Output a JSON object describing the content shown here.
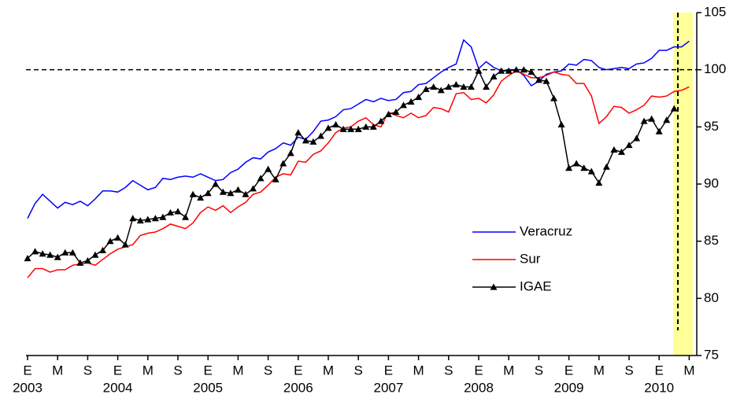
{
  "chart_data": {
    "type": "line",
    "categories": [
      "E",
      null,
      null,
      null,
      "M",
      null,
      null,
      null,
      "S",
      null,
      null,
      null,
      "E",
      null,
      null,
      null,
      "M",
      null,
      null,
      null,
      "S",
      null,
      null,
      null,
      "E",
      null,
      null,
      null,
      "M",
      null,
      null,
      null,
      "S",
      null,
      null,
      null,
      "E",
      null,
      null,
      null,
      "M",
      null,
      null,
      null,
      "S",
      null,
      null,
      null,
      "E",
      null,
      null,
      null,
      "M",
      null,
      null,
      null,
      "S",
      null,
      null,
      null,
      "E",
      null,
      null,
      null,
      "M",
      null,
      null,
      null,
      "S",
      null,
      null,
      null,
      "E",
      null,
      null,
      null,
      "M",
      null,
      null,
      null,
      "S",
      null,
      null,
      null,
      "E",
      null,
      null,
      null,
      "M"
    ],
    "years": [
      "2003",
      "2004",
      "2005",
      "2006",
      "2007",
      "2008",
      "2009",
      "2010"
    ],
    "series": [
      {
        "name": "Veracruz",
        "color": "#0000ff",
        "values": [
          87.0,
          88.3,
          89.1,
          88.5,
          87.9,
          88.4,
          88.2,
          88.5,
          88.1,
          88.7,
          89.4,
          89.4,
          89.3,
          89.7,
          90.3,
          89.9,
          89.5,
          89.7,
          90.5,
          90.4,
          90.6,
          90.7,
          90.6,
          90.9,
          90.6,
          90.3,
          90.4,
          91.0,
          91.3,
          91.9,
          92.3,
          92.2,
          92.8,
          93.1,
          93.6,
          93.4,
          94.1,
          93.9,
          94.6,
          95.5,
          95.6,
          95.9,
          96.5,
          96.6,
          97.0,
          97.4,
          97.2,
          97.5,
          97.3,
          97.4,
          98.0,
          98.1,
          98.7,
          98.8,
          99.3,
          99.8,
          100.2,
          100.5,
          102.6,
          102.0,
          100.1,
          100.7,
          100.2,
          99.9,
          100.0,
          100.0,
          99.5,
          98.6,
          99.0,
          99.6,
          99.8,
          99.9,
          100.5,
          100.4,
          100.9,
          100.8,
          100.2,
          100.0,
          100.1,
          100.2,
          100.1,
          100.5,
          100.6,
          101.0,
          101.7,
          101.7,
          102.0,
          102.0,
          102.5
        ]
      },
      {
        "name": "Sur",
        "color": "#ff0000",
        "values": [
          81.8,
          82.6,
          82.6,
          82.3,
          82.5,
          82.5,
          82.9,
          83.0,
          83.1,
          82.9,
          83.4,
          83.9,
          84.3,
          84.5,
          84.7,
          85.5,
          85.7,
          85.8,
          86.1,
          86.5,
          86.3,
          86.1,
          86.6,
          87.5,
          88.0,
          87.7,
          88.1,
          87.5,
          88.0,
          88.4,
          89.1,
          89.3,
          89.9,
          90.6,
          90.9,
          90.8,
          92.0,
          91.9,
          92.6,
          92.9,
          93.6,
          94.5,
          94.9,
          95.0,
          95.5,
          95.8,
          95.2,
          95.0,
          96.3,
          96.0,
          95.8,
          96.2,
          95.8,
          96.0,
          96.7,
          96.6,
          96.3,
          97.9,
          98.0,
          97.4,
          97.5,
          97.1,
          97.8,
          99.0,
          99.5,
          99.9,
          99.6,
          99.3,
          99.3,
          99.5,
          99.8,
          99.6,
          99.5,
          98.8,
          98.8,
          97.7,
          95.3,
          95.9,
          96.8,
          96.7,
          96.2,
          96.5,
          96.9,
          97.7,
          97.6,
          97.7,
          98.1,
          98.2,
          98.5
        ]
      },
      {
        "name": "IGAE",
        "color": "#000000",
        "marker": "triangle",
        "values": [
          83.5,
          84.1,
          83.9,
          83.8,
          83.6,
          84.0,
          84.0,
          83.1,
          83.3,
          83.8,
          84.2,
          85.0,
          85.3,
          84.7,
          87.0,
          86.8,
          86.9,
          87.0,
          87.1,
          87.5,
          87.6,
          87.1,
          89.1,
          88.8,
          89.2,
          90.0,
          89.3,
          89.2,
          89.5,
          89.1,
          89.6,
          90.5,
          91.3,
          90.4,
          91.8,
          92.7,
          94.5,
          93.8,
          93.7,
          94.2,
          94.9,
          95.2,
          94.8,
          94.8,
          94.8,
          95.0,
          95.0,
          95.5,
          96.1,
          96.3,
          96.9,
          97.2,
          97.6,
          98.3,
          98.5,
          98.2,
          98.5,
          98.7,
          98.5,
          98.5,
          99.9,
          98.5,
          99.4,
          99.9,
          99.9,
          100.0,
          100.0,
          99.8,
          99.1,
          99.0,
          97.5,
          95.2,
          91.4,
          91.8,
          91.4,
          91.1,
          90.1,
          91.5,
          93.0,
          92.8,
          93.4,
          94.0,
          95.5,
          95.7,
          94.6,
          95.6,
          96.6,
          null,
          null
        ]
      }
    ],
    "ylim": [
      75,
      105
    ],
    "yticks": [
      75,
      80,
      85,
      90,
      95,
      100,
      105
    ],
    "reference_line": 100,
    "y_axis_side": "right"
  }
}
